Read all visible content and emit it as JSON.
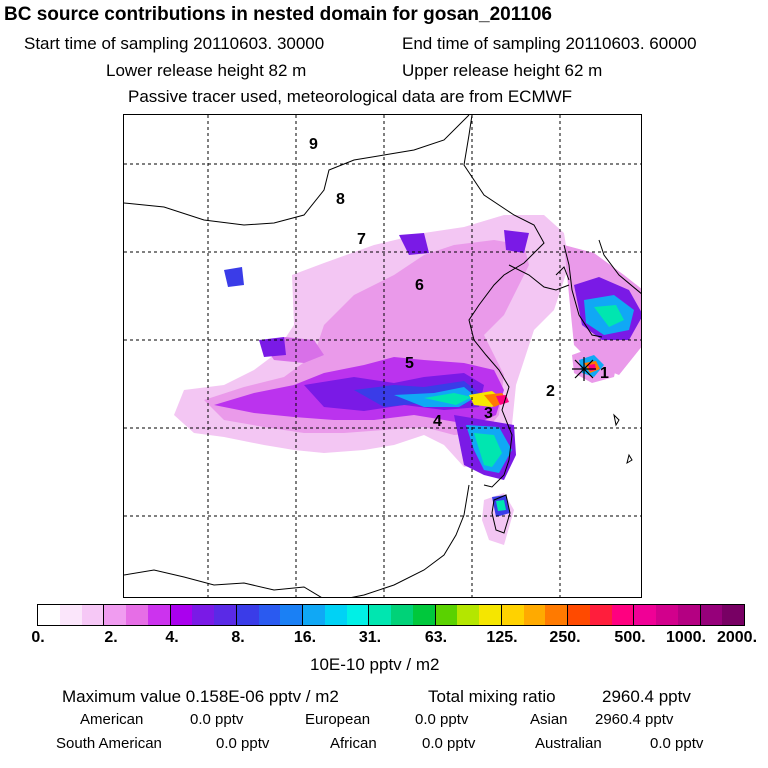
{
  "header": {
    "title": "BC  source contributions in nested domain for gosan_201106",
    "start_label": "Start time of sampling 20110603. 30000",
    "end_label": "End time of sampling 20110603. 60000",
    "lower_label": "Lower release height   82 m",
    "upper_label": "Upper release height   62 m",
    "tracer_note": "Passive tracer used, meteorological data are from ECMWF"
  },
  "map": {
    "region_labels": [
      "1",
      "2",
      "3",
      "4",
      "5",
      "6",
      "7",
      "8",
      "9"
    ],
    "receptor_marker": "star"
  },
  "colorbar": {
    "colors": [
      "#ffffff",
      "#fbe6fb",
      "#f6c8f6",
      "#f09cf0",
      "#e66ee6",
      "#cc33ee",
      "#aa00ee",
      "#7a1ae6",
      "#5a2ae6",
      "#3a3ce8",
      "#2a5af0",
      "#1a80f5",
      "#10a8f5",
      "#00d2f5",
      "#00f0e6",
      "#00e6b0",
      "#00d278",
      "#00c83c",
      "#5ad200",
      "#b4e600",
      "#f5e600",
      "#ffd200",
      "#ffaa00",
      "#ff7a00",
      "#ff4a00",
      "#ff1e3c",
      "#ff0080",
      "#f00096",
      "#d2008c",
      "#b40082",
      "#96007a",
      "#780064"
    ],
    "ticks": [
      "0.",
      "2.",
      "4.",
      "8.",
      "16.",
      "31.",
      "63.",
      "125.",
      "250.",
      "500.",
      "1000.",
      "2000."
    ],
    "units": "10E-10 pptv / m2"
  },
  "summary": {
    "max_label": "Maximum value  0.158E-06 pptv / m2",
    "total_label": "Total mixing ratio",
    "total_value": "2960.4 pptv",
    "regions": [
      {
        "name": "American",
        "value": "0.0 pptv"
      },
      {
        "name": "European",
        "value": "0.0 pptv"
      },
      {
        "name": "Asian",
        "value": "2960.4 pptv"
      },
      {
        "name": "South American",
        "value": "0.0 pptv"
      },
      {
        "name": "African",
        "value": "0.0 pptv"
      },
      {
        "name": "Australian",
        "value": "0.0 pptv"
      }
    ]
  }
}
